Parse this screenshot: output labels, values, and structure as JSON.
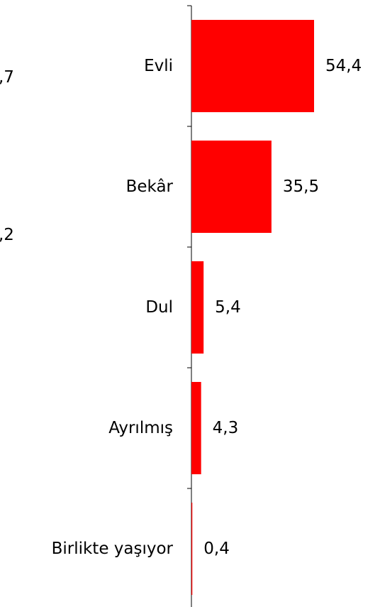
{
  "chart_data": {
    "type": "bar",
    "orientation": "horizontal",
    "categories": [
      "Evli",
      "Bekâr",
      "Dul",
      "Ayrılmış",
      "Birlikte yaşıyor"
    ],
    "values": [
      54.4,
      35.5,
      5.4,
      4.3,
      0.4
    ],
    "value_labels": [
      "54,4",
      "35,5",
      "5,4",
      "4,3",
      "0,4"
    ],
    "bar_color": "#ff0000",
    "grid": false,
    "legend": "none",
    "title": "",
    "xlabel": "",
    "ylabel": ""
  },
  "left_fragments": [
    ",7",
    ",2"
  ]
}
